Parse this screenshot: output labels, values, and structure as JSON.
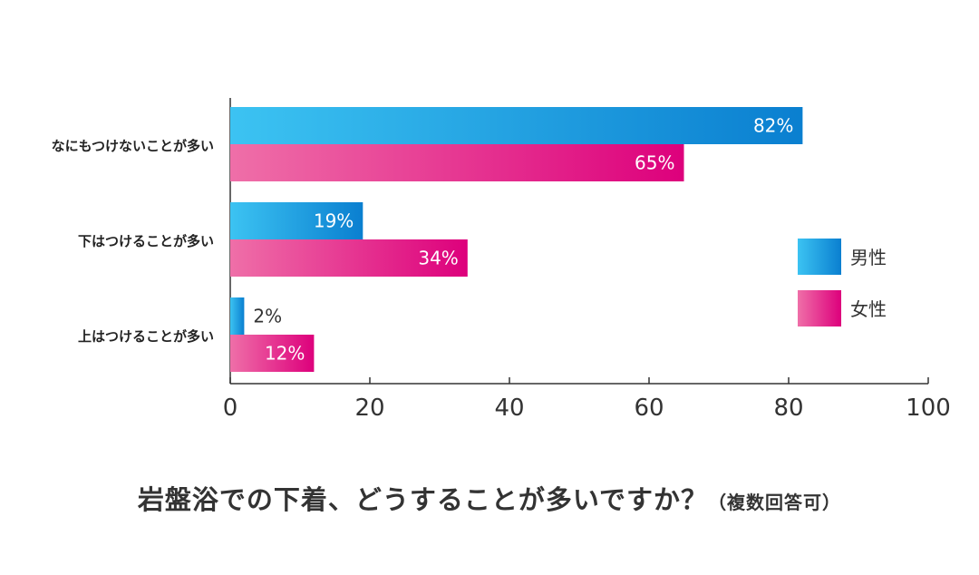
{
  "chart_data": {
    "type": "bar",
    "orientation": "horizontal",
    "categories": [
      "なにもつけないことが多い",
      "下はつけることが多い",
      "上はつけることが多い"
    ],
    "series": [
      {
        "name": "男性",
        "values": [
          82,
          19,
          2
        ],
        "labels": [
          "82%",
          "19%",
          "2%"
        ],
        "color": "#1aa6e8"
      },
      {
        "name": "女性",
        "values": [
          65,
          34,
          12
        ],
        "labels": [
          "65%",
          "34%",
          "12%"
        ],
        "color": "#e0007f"
      }
    ],
    "xlim": [
      0,
      100
    ],
    "xticks": [
      0,
      20,
      40,
      60,
      80,
      100
    ],
    "legend_position": "right",
    "grid": false
  },
  "title": {
    "main": "岩盤浴での下着、どうすることが多いですか？",
    "note": "（複数回答可）"
  }
}
